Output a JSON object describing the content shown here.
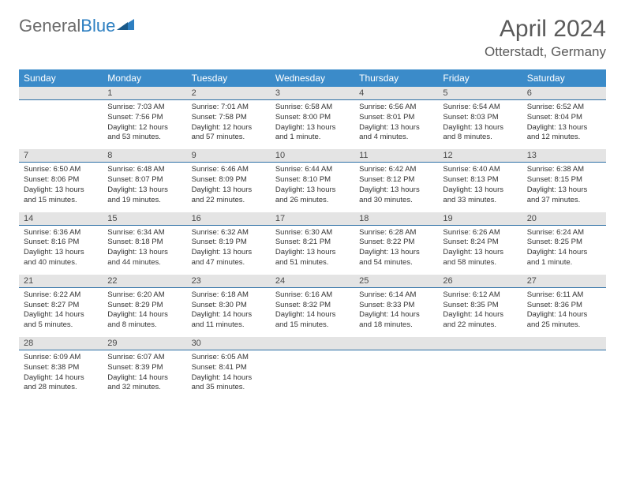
{
  "brand": {
    "part1": "General",
    "part2": "Blue"
  },
  "title": "April 2024",
  "location": "Otterstadt, Germany",
  "colors": {
    "header_bg": "#3b8bc9",
    "header_text": "#ffffff",
    "daynum_bg": "#e4e4e4",
    "daynum_border": "#2d6fa5",
    "body_text": "#333333",
    "title_text": "#5a5a5a",
    "logo_gray": "#6b6b6b",
    "logo_blue": "#2d7fc1"
  },
  "weekdays": [
    "Sunday",
    "Monday",
    "Tuesday",
    "Wednesday",
    "Thursday",
    "Friday",
    "Saturday"
  ],
  "weeks": [
    {
      "nums": [
        "",
        "1",
        "2",
        "3",
        "4",
        "5",
        "6"
      ],
      "cells": [
        null,
        {
          "sunrise": "7:03 AM",
          "sunset": "7:56 PM",
          "daylight": "12 hours and 53 minutes."
        },
        {
          "sunrise": "7:01 AM",
          "sunset": "7:58 PM",
          "daylight": "12 hours and 57 minutes."
        },
        {
          "sunrise": "6:58 AM",
          "sunset": "8:00 PM",
          "daylight": "13 hours and 1 minute."
        },
        {
          "sunrise": "6:56 AM",
          "sunset": "8:01 PM",
          "daylight": "13 hours and 4 minutes."
        },
        {
          "sunrise": "6:54 AM",
          "sunset": "8:03 PM",
          "daylight": "13 hours and 8 minutes."
        },
        {
          "sunrise": "6:52 AM",
          "sunset": "8:04 PM",
          "daylight": "13 hours and 12 minutes."
        }
      ]
    },
    {
      "nums": [
        "7",
        "8",
        "9",
        "10",
        "11",
        "12",
        "13"
      ],
      "cells": [
        {
          "sunrise": "6:50 AM",
          "sunset": "8:06 PM",
          "daylight": "13 hours and 15 minutes."
        },
        {
          "sunrise": "6:48 AM",
          "sunset": "8:07 PM",
          "daylight": "13 hours and 19 minutes."
        },
        {
          "sunrise": "6:46 AM",
          "sunset": "8:09 PM",
          "daylight": "13 hours and 22 minutes."
        },
        {
          "sunrise": "6:44 AM",
          "sunset": "8:10 PM",
          "daylight": "13 hours and 26 minutes."
        },
        {
          "sunrise": "6:42 AM",
          "sunset": "8:12 PM",
          "daylight": "13 hours and 30 minutes."
        },
        {
          "sunrise": "6:40 AM",
          "sunset": "8:13 PM",
          "daylight": "13 hours and 33 minutes."
        },
        {
          "sunrise": "6:38 AM",
          "sunset": "8:15 PM",
          "daylight": "13 hours and 37 minutes."
        }
      ]
    },
    {
      "nums": [
        "14",
        "15",
        "16",
        "17",
        "18",
        "19",
        "20"
      ],
      "cells": [
        {
          "sunrise": "6:36 AM",
          "sunset": "8:16 PM",
          "daylight": "13 hours and 40 minutes."
        },
        {
          "sunrise": "6:34 AM",
          "sunset": "8:18 PM",
          "daylight": "13 hours and 44 minutes."
        },
        {
          "sunrise": "6:32 AM",
          "sunset": "8:19 PM",
          "daylight": "13 hours and 47 minutes."
        },
        {
          "sunrise": "6:30 AM",
          "sunset": "8:21 PM",
          "daylight": "13 hours and 51 minutes."
        },
        {
          "sunrise": "6:28 AM",
          "sunset": "8:22 PM",
          "daylight": "13 hours and 54 minutes."
        },
        {
          "sunrise": "6:26 AM",
          "sunset": "8:24 PM",
          "daylight": "13 hours and 58 minutes."
        },
        {
          "sunrise": "6:24 AM",
          "sunset": "8:25 PM",
          "daylight": "14 hours and 1 minute."
        }
      ]
    },
    {
      "nums": [
        "21",
        "22",
        "23",
        "24",
        "25",
        "26",
        "27"
      ],
      "cells": [
        {
          "sunrise": "6:22 AM",
          "sunset": "8:27 PM",
          "daylight": "14 hours and 5 minutes."
        },
        {
          "sunrise": "6:20 AM",
          "sunset": "8:29 PM",
          "daylight": "14 hours and 8 minutes."
        },
        {
          "sunrise": "6:18 AM",
          "sunset": "8:30 PM",
          "daylight": "14 hours and 11 minutes."
        },
        {
          "sunrise": "6:16 AM",
          "sunset": "8:32 PM",
          "daylight": "14 hours and 15 minutes."
        },
        {
          "sunrise": "6:14 AM",
          "sunset": "8:33 PM",
          "daylight": "14 hours and 18 minutes."
        },
        {
          "sunrise": "6:12 AM",
          "sunset": "8:35 PM",
          "daylight": "14 hours and 22 minutes."
        },
        {
          "sunrise": "6:11 AM",
          "sunset": "8:36 PM",
          "daylight": "14 hours and 25 minutes."
        }
      ]
    },
    {
      "nums": [
        "28",
        "29",
        "30",
        "",
        "",
        "",
        ""
      ],
      "cells": [
        {
          "sunrise": "6:09 AM",
          "sunset": "8:38 PM",
          "daylight": "14 hours and 28 minutes."
        },
        {
          "sunrise": "6:07 AM",
          "sunset": "8:39 PM",
          "daylight": "14 hours and 32 minutes."
        },
        {
          "sunrise": "6:05 AM",
          "sunset": "8:41 PM",
          "daylight": "14 hours and 35 minutes."
        },
        null,
        null,
        null,
        null
      ]
    }
  ],
  "labels": {
    "sunrise": "Sunrise: ",
    "sunset": "Sunset: ",
    "daylight": "Daylight: "
  }
}
